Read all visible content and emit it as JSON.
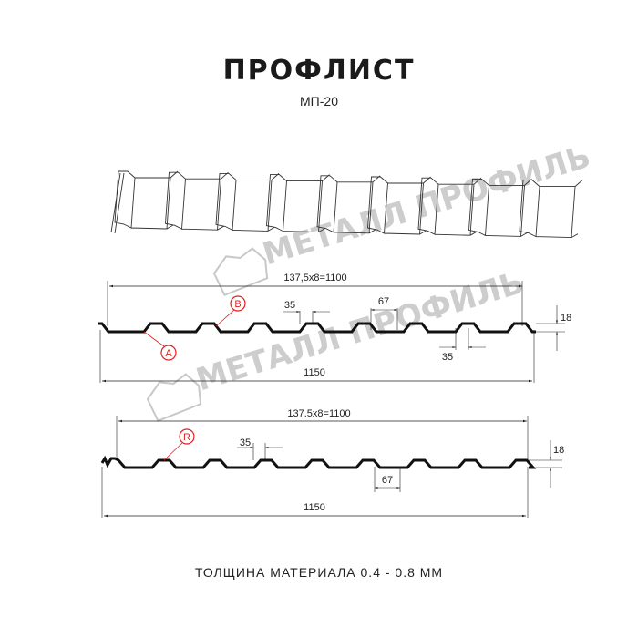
{
  "header": {
    "title": "ПРОФЛИСТ",
    "subtitle": "МП-20"
  },
  "watermark": {
    "text": "МЕТАЛЛ ПРОФИЛЬ"
  },
  "profile_a": {
    "overall_width": "137,5x8=1100",
    "total_width": "1150",
    "top_width": "35",
    "bottom_width": "35",
    "pitch": "67",
    "height": "18",
    "label_a": "A",
    "label_b": "B"
  },
  "profile_r": {
    "overall_width": "137.5x8=1100",
    "total_width": "1150",
    "top_width": "35",
    "pitch": "67",
    "height": "18",
    "label_r": "R"
  },
  "footer": {
    "thickness": "ТОЛЩИНА МАТЕРИАЛА 0.4 - 0.8 ММ"
  },
  "colors": {
    "line": "#111111",
    "callout": "#e02020",
    "watermark": "#bdbdbd"
  }
}
